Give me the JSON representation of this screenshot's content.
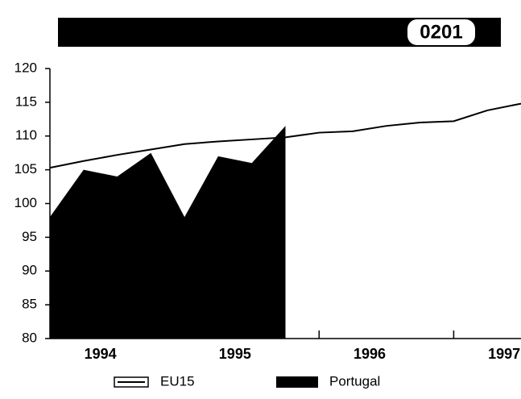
{
  "chart_data": {
    "type": "line-area",
    "code": "0201",
    "years": [
      "1994",
      "1995",
      "1996",
      "1997"
    ],
    "ylim": [
      80,
      120
    ],
    "yticks": [
      80,
      85,
      90,
      95,
      100,
      105,
      110,
      115,
      120
    ],
    "series": [
      {
        "name": "EU15",
        "kind": "line",
        "color": "#000000",
        "values": [
          105.3,
          106.3,
          107.2,
          108,
          108.8,
          109.2,
          109.5,
          109.8,
          110.5,
          110.7,
          111.5,
          112,
          112.2,
          113.8,
          114.8
        ]
      },
      {
        "name": "Portugal",
        "kind": "area",
        "color": "#000000",
        "values": [
          98,
          105,
          104,
          107.5,
          98,
          107,
          106,
          111.5,
          null,
          null,
          null,
          null,
          null,
          null,
          null
        ]
      }
    ]
  }
}
